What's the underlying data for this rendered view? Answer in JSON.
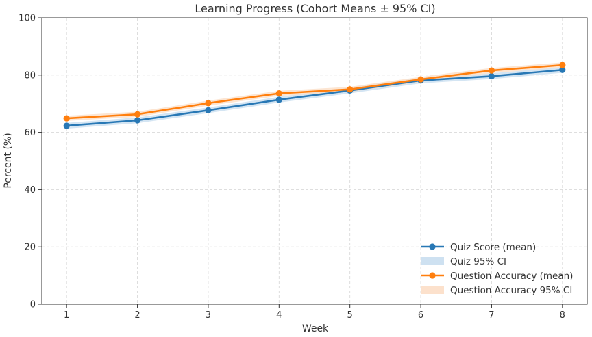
{
  "chart_data": {
    "type": "line",
    "title": "Learning Progress (Cohort Means ± 95% CI)",
    "xlabel": "Week",
    "ylabel": "Percent (%)",
    "x": [
      1,
      2,
      3,
      4,
      5,
      6,
      7,
      8
    ],
    "xlim": [
      0.65,
      8.35
    ],
    "ylim": [
      0,
      100
    ],
    "yticks": [
      0,
      20,
      40,
      60,
      80,
      100
    ],
    "xticks": [
      1,
      2,
      3,
      4,
      5,
      6,
      7,
      8
    ],
    "grid": true,
    "legend_position": "lower-right",
    "series": [
      {
        "name": "Quiz Score (mean)",
        "values": [
          62.3,
          64.2,
          67.7,
          71.4,
          74.6,
          78.1,
          79.6,
          81.8
        ],
        "ci_name": "Quiz 95% CI",
        "ci_lower": [
          61.3,
          63.2,
          66.7,
          70.4,
          73.6,
          77.1,
          78.6,
          80.8
        ],
        "ci_upper": [
          63.3,
          65.2,
          68.7,
          72.4,
          75.6,
          79.1,
          80.6,
          82.8
        ],
        "color": "#2878b5",
        "ci_color": "#c6dcef"
      },
      {
        "name": "Question Accuracy (mean)",
        "values": [
          64.9,
          66.3,
          70.2,
          73.6,
          75.0,
          78.5,
          81.6,
          83.5
        ],
        "ci_name": "Question Accuracy 95% CI",
        "ci_lower": [
          64.0,
          65.4,
          69.3,
          72.7,
          74.1,
          77.6,
          80.7,
          82.6
        ],
        "ci_upper": [
          65.8,
          67.2,
          71.1,
          74.5,
          75.9,
          79.4,
          82.5,
          84.4
        ],
        "color": "#ff7f0e",
        "ci_color": "#fbdcc3"
      }
    ]
  }
}
